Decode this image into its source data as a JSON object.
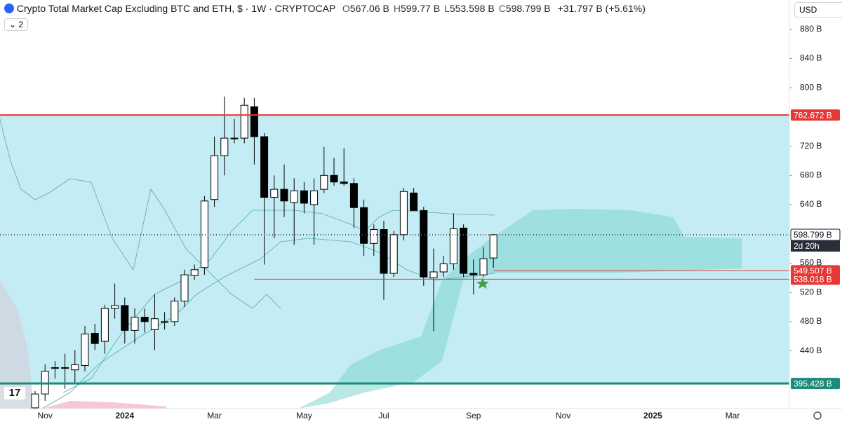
{
  "header": {
    "title": "Crypto Total Market Cap Excluding BTC and ETH, $ · 1W · CRYPTOCAP",
    "ohlc": [
      {
        "key": "O",
        "value": "567.06 B"
      },
      {
        "key": "H",
        "value": "599.77 B"
      },
      {
        "key": "L",
        "value": "553.598 B"
      },
      {
        "key": "C",
        "value": "598.799 B"
      }
    ],
    "change": "+31.797 B (+5.61%)",
    "currency": "USD",
    "indicators": "2"
  },
  "chart_data": {
    "type": "candlestick",
    "categories": [
      null,
      "Nov",
      null,
      null,
      null,
      null,
      null,
      null,
      null,
      "2024",
      null,
      null,
      null,
      null,
      null,
      null,
      null,
      null,
      "Mar",
      null,
      null,
      null,
      null,
      null,
      null,
      null,
      null,
      "May",
      null,
      null,
      null,
      null,
      null,
      null,
      null,
      "Jul",
      null,
      null,
      null,
      null,
      null,
      null,
      null,
      null,
      "Sep",
      null,
      null,
      null,
      null,
      null,
      null,
      null,
      null,
      "Nov",
      null,
      null,
      null,
      null,
      null,
      null,
      null,
      null,
      "2025",
      null,
      null,
      null,
      null,
      null,
      null,
      null,
      "Mar",
      null,
      null,
      null,
      null,
      null
    ],
    "open": [
      362,
      381,
      416,
      417,
      414,
      420,
      464,
      453,
      498,
      502,
      468,
      486,
      469,
      479,
      480,
      508,
      543,
      554,
      647,
      707,
      731,
      731,
      774,
      733,
      650,
      661,
      643,
      659,
      640,
      661,
      680,
      671,
      669,
      636,
      587,
      606,
      546,
      599,
      656,
      632,
      540,
      548,
      559,
      608,
      546,
      544,
      567.06,
      null,
      null,
      null,
      null,
      null,
      null,
      null,
      null,
      null,
      null,
      null,
      null,
      null,
      null,
      null,
      null,
      null,
      null,
      null,
      null,
      null,
      null,
      null,
      null,
      null,
      null,
      null,
      null,
      null
    ],
    "high": [
      385,
      421.5,
      426,
      436,
      441,
      474,
      477,
      503,
      532,
      513,
      498,
      498,
      517,
      493,
      513,
      551,
      558,
      652,
      733,
      788,
      757,
      786,
      786,
      738,
      680,
      695,
      676,
      671,
      676,
      719,
      704,
      717,
      676,
      647,
      613,
      618,
      604,
      663,
      663,
      637,
      580,
      570,
      628,
      613,
      565,
      582,
      599.77,
      null,
      null,
      null,
      null,
      null,
      null,
      null,
      null,
      null,
      null,
      null,
      null,
      null,
      null,
      null,
      null,
      null,
      null,
      null,
      null,
      null,
      null,
      null,
      null,
      null,
      null,
      null,
      null,
      null
    ],
    "low": [
      360,
      371.6,
      402,
      388,
      397,
      412,
      441,
      436,
      484,
      450,
      450,
      465,
      441,
      469,
      474,
      500,
      537,
      544,
      637,
      680,
      724,
      724,
      695,
      558,
      594,
      623,
      585,
      628,
      585,
      656,
      666,
      666,
      608,
      570,
      570,
      510,
      541,
      591,
      632,
      529,
      467,
      541,
      551,
      541,
      517,
      541,
      553.598,
      null,
      null,
      null,
      null,
      null,
      null,
      null,
      null,
      null,
      null,
      null,
      null,
      null,
      null,
      null,
      null,
      null,
      null,
      null,
      null,
      null,
      null,
      null,
      null,
      null,
      null,
      null,
      null,
      null
    ],
    "close": [
      381,
      412,
      417,
      416,
      421,
      463,
      450,
      498,
      502,
      468,
      486,
      480,
      484,
      480,
      508,
      544,
      551,
      645,
      707,
      731,
      731,
      776,
      733,
      650,
      661,
      645,
      659,
      642,
      659,
      680,
      671,
      669,
      636,
      587,
      606,
      546,
      599,
      658,
      632,
      541,
      548,
      559,
      607,
      546,
      544,
      566,
      598.799,
      null,
      null,
      null,
      null,
      null,
      null,
      null,
      null,
      null,
      null,
      null,
      null,
      null,
      null,
      null,
      null,
      null,
      null,
      null,
      null,
      null,
      null,
      null,
      null,
      null,
      null,
      null,
      null,
      null
    ],
    "up_color": "#ffffff",
    "down_color": "#000000",
    "ylim": [
      361,
      920
    ],
    "yticks": [
      {
        "value": 440,
        "label": "440 B"
      },
      {
        "value": 480,
        "label": "480 B"
      },
      {
        "value": 520,
        "label": "520 B"
      },
      {
        "value": 560,
        "label": "560 B"
      },
      {
        "value": 640,
        "label": "640 B"
      },
      {
        "value": 680,
        "label": "680 B"
      },
      {
        "value": 720,
        "label": "720 B"
      },
      {
        "value": 800,
        "label": "800 B"
      },
      {
        "value": 840,
        "label": "840 B"
      },
      {
        "value": 880,
        "label": "880 B"
      }
    ],
    "hlines": [
      {
        "value": 762.672,
        "label": "762.672 B",
        "color": "#e53935",
        "start": 0
      },
      {
        "value": 598.799,
        "label": "598.799 B",
        "sublabel": "2d 20h",
        "color": "#555555",
        "start": 0,
        "dotted": true
      },
      {
        "value": 549.507,
        "label": "549.507 B",
        "color": "#e53935",
        "start": 46
      },
      {
        "value": 538.018,
        "label": "538.018 B",
        "color": "#e53935",
        "start": 22
      },
      {
        "value": 395.428,
        "label": "395.428 B",
        "color": "#1e8a7a",
        "start": 0,
        "thick": true
      }
    ]
  }
}
